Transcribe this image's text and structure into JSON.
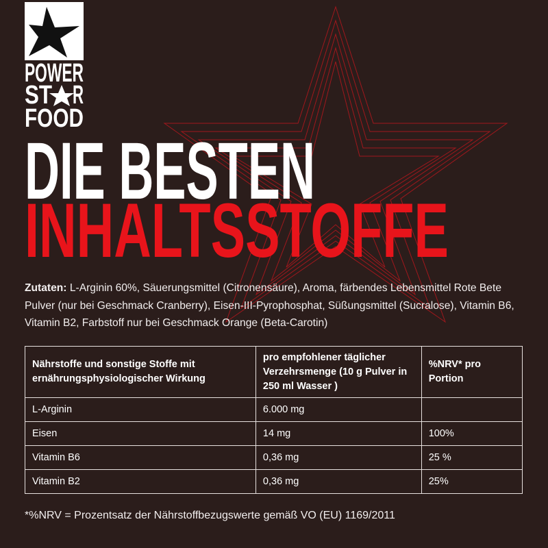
{
  "logo": {
    "line1": "POWER",
    "line2_start": "ST",
    "line2_end": "R",
    "line3": "FOOD"
  },
  "headline": {
    "line1": "DIE BESTEN",
    "line2": "INHALTSSTOFFE"
  },
  "ingredients": {
    "label": "Zutaten:",
    "text": "L-Arginin 60%, Säuerungsmittel (Citronensäure), Aroma, färbendes Lebensmittel Rote Bete Pulver (nur bei Geschmack Cranberry), Eisen-III-Pyrophosphat, Süßungsmittel (Sucralose), Vitamin B6, Vitamin B2, Farbstoff nur bei Geschmack Orange (Beta-Carotin)"
  },
  "table": {
    "header": [
      "Nährstoffe und sonstige Stoffe mit ernährungsphysiologischer Wirkung",
      "pro empfohlener täglicher Verzehrsmenge (10 g Pulver in 250 ml Wasser )",
      "%NRV* pro Portion"
    ],
    "rows": [
      [
        "L-Arginin",
        "6.000 mg",
        ""
      ],
      [
        "Eisen",
        "14 mg",
        "100%"
      ],
      [
        "Vitamin B6",
        "0,36 mg",
        "25 %"
      ],
      [
        "Vitamin B2",
        "0,36 mg",
        "25%"
      ]
    ]
  },
  "footnote": "*%NRV = Prozentsatz der Nährstoffbezugswerte gemäß VO (EU) 1169/2011"
}
